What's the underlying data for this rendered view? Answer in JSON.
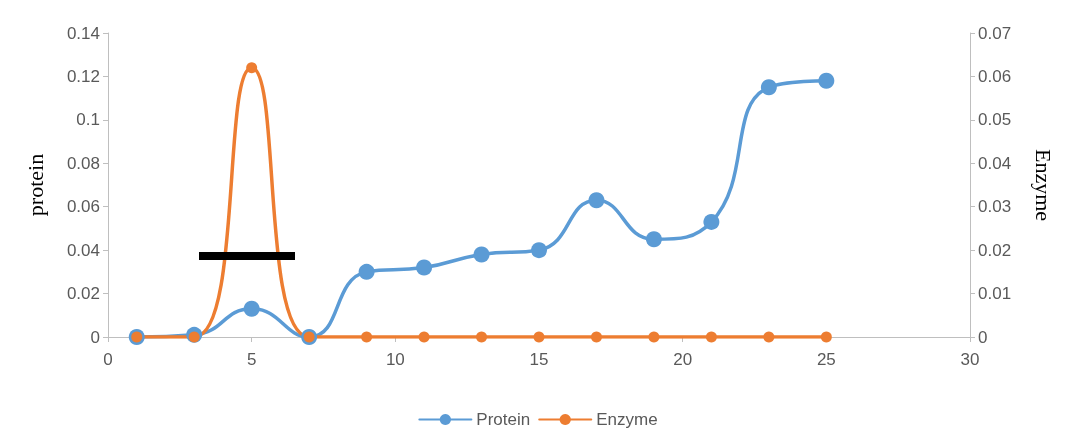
{
  "chart_data": {
    "type": "line",
    "ylabel": "protein",
    "y2label": "Enzyme",
    "x": [
      1,
      3,
      5,
      7,
      9,
      11,
      13,
      15,
      17,
      19,
      21,
      23,
      25
    ],
    "series": [
      {
        "name": "Protein",
        "color": "#5b9bd5",
        "values": [
          0,
          0.001,
          0.013,
          0,
          0.03,
          0.032,
          0.038,
          0.04,
          0.063,
          0.045,
          0.053,
          0.115,
          0.118
        ]
      },
      {
        "name": "Enzyme",
        "color": "#ed7d31",
        "axis": "y2",
        "values": [
          0,
          0,
          0.062,
          0,
          0,
          0,
          0,
          0,
          0,
          0,
          0,
          0,
          0
        ]
      }
    ],
    "xlim": [
      0,
      30
    ],
    "xticks": [
      0,
      5,
      10,
      15,
      20,
      25,
      30
    ],
    "ylim": [
      0,
      0.14
    ],
    "yticks": [
      0,
      0.02,
      0.04,
      0.06,
      0.08,
      0.1,
      0.12,
      0.14
    ],
    "y2lim": [
      0,
      0.07
    ],
    "y2ticks": [
      0,
      0.01,
      0.02,
      0.03,
      0.04,
      0.05,
      0.06,
      0.07
    ],
    "grid": false,
    "legend": "bottom",
    "marker": "circle",
    "line_style": "solid"
  }
}
